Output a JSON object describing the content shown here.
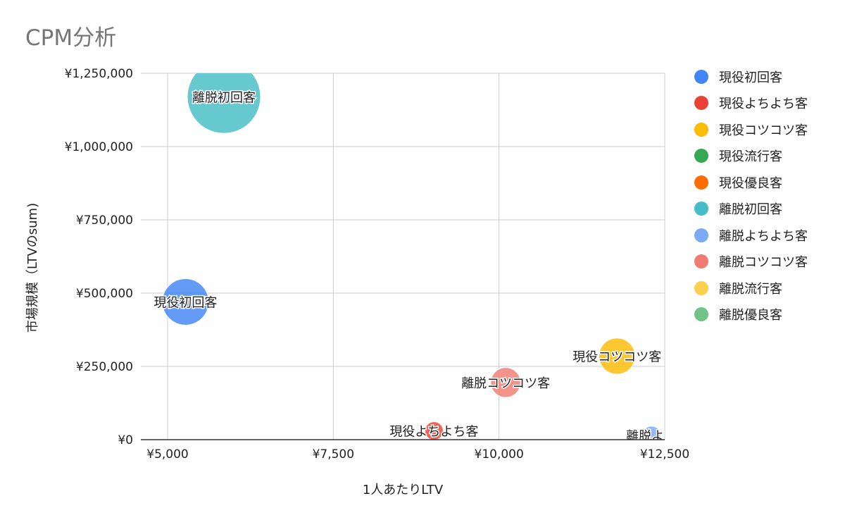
{
  "chart_data": {
    "type": "scatter",
    "subtype": "bubble",
    "title": "CPM分析",
    "xlabel": "1人あたりLTV",
    "ylabel": "市場規模（LTVのsum)",
    "xlim": [
      5000,
      12500
    ],
    "ylim": [
      0,
      1250000
    ],
    "x_ticks": [
      "¥5,000",
      "¥7,500",
      "¥10,000",
      "¥12,500"
    ],
    "x_tick_values": [
      5000,
      7500,
      10000,
      12500
    ],
    "y_ticks": [
      "¥0",
      "¥250,000",
      "¥500,000",
      "¥750,000",
      "¥1,000,000",
      "¥1,250,000"
    ],
    "y_tick_values": [
      0,
      250000,
      500000,
      750000,
      1000000,
      1250000
    ],
    "grid": true,
    "legend_position": "right",
    "series": [
      {
        "name": "現役初回客",
        "color": "#4285F4",
        "x": 5270,
        "y": 470000,
        "size": 470000,
        "label": "現役初回客"
      },
      {
        "name": "現役よちよち客",
        "color": "#EA4335",
        "x": 9020,
        "y": 30000,
        "size": 30000,
        "label": "現役よちよち客"
      },
      {
        "name": "現役コツコツ客",
        "color": "#FBBC04",
        "x": 11780,
        "y": 285000,
        "size": 285000,
        "label": "現役コツコツ客"
      },
      {
        "name": "現役流行客",
        "color": "#34A853",
        "x": null,
        "y": null,
        "size": null,
        "label": ""
      },
      {
        "name": "現役優良客",
        "color": "#FF6D01",
        "x": null,
        "y": null,
        "size": null,
        "label": ""
      },
      {
        "name": "離脱初回客",
        "color": "#46BDC6",
        "x": 5850,
        "y": 1170000,
        "size": 1170000,
        "label": "離脱初回客"
      },
      {
        "name": "離脱よちよち客",
        "color": "#7BAAF7",
        "x": 12300,
        "y": 15000,
        "size": 15000,
        "label": "離脱よち"
      },
      {
        "name": "離脱コツコツ客",
        "color": "#F07B72",
        "x": 10100,
        "y": 195000,
        "size": 195000,
        "label": "離脱コツコツ客"
      },
      {
        "name": "離脱流行客",
        "color": "#FCD04F",
        "x": null,
        "y": null,
        "size": null,
        "label": ""
      },
      {
        "name": "離脱優良客",
        "color": "#71C287",
        "x": null,
        "y": null,
        "size": null,
        "label": ""
      }
    ]
  }
}
